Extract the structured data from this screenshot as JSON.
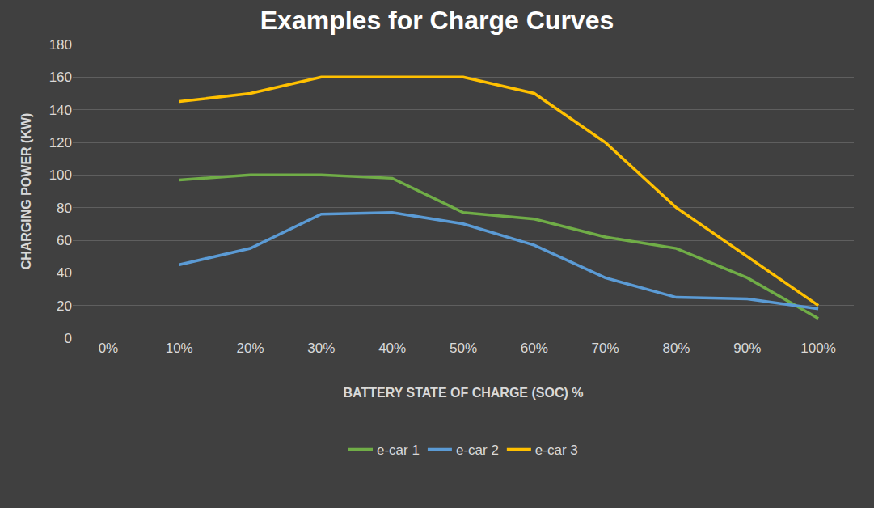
{
  "chart_data": {
    "type": "line",
    "title": "Examples for Charge Curves",
    "x_label": "BATTERY STATE OF CHARGE (SOC) %",
    "y_label": "CHARGING POWER (KW)",
    "categories": [
      "0%",
      "10%",
      "20%",
      "30%",
      "40%",
      "50%",
      "60%",
      "70%",
      "80%",
      "90%",
      "100%"
    ],
    "series": [
      {
        "name": "e-car 1",
        "color": "#70ad47",
        "values": [
          null,
          97,
          100,
          100,
          98,
          77,
          73,
          62,
          55,
          37,
          12
        ]
      },
      {
        "name": "e-car 2",
        "color": "#5b9bd5",
        "values": [
          null,
          45,
          55,
          76,
          77,
          70,
          57,
          37,
          25,
          24,
          18
        ]
      },
      {
        "name": "e-car 3",
        "color": "#ffc000",
        "values": [
          null,
          145,
          150,
          160,
          160,
          160,
          150,
          120,
          80,
          50,
          20
        ]
      }
    ],
    "ylim": [
      0,
      180
    ],
    "yticks": [
      0,
      20,
      40,
      60,
      80,
      100,
      120,
      140,
      160,
      180
    ],
    "grid": true,
    "legend": "bottom"
  }
}
